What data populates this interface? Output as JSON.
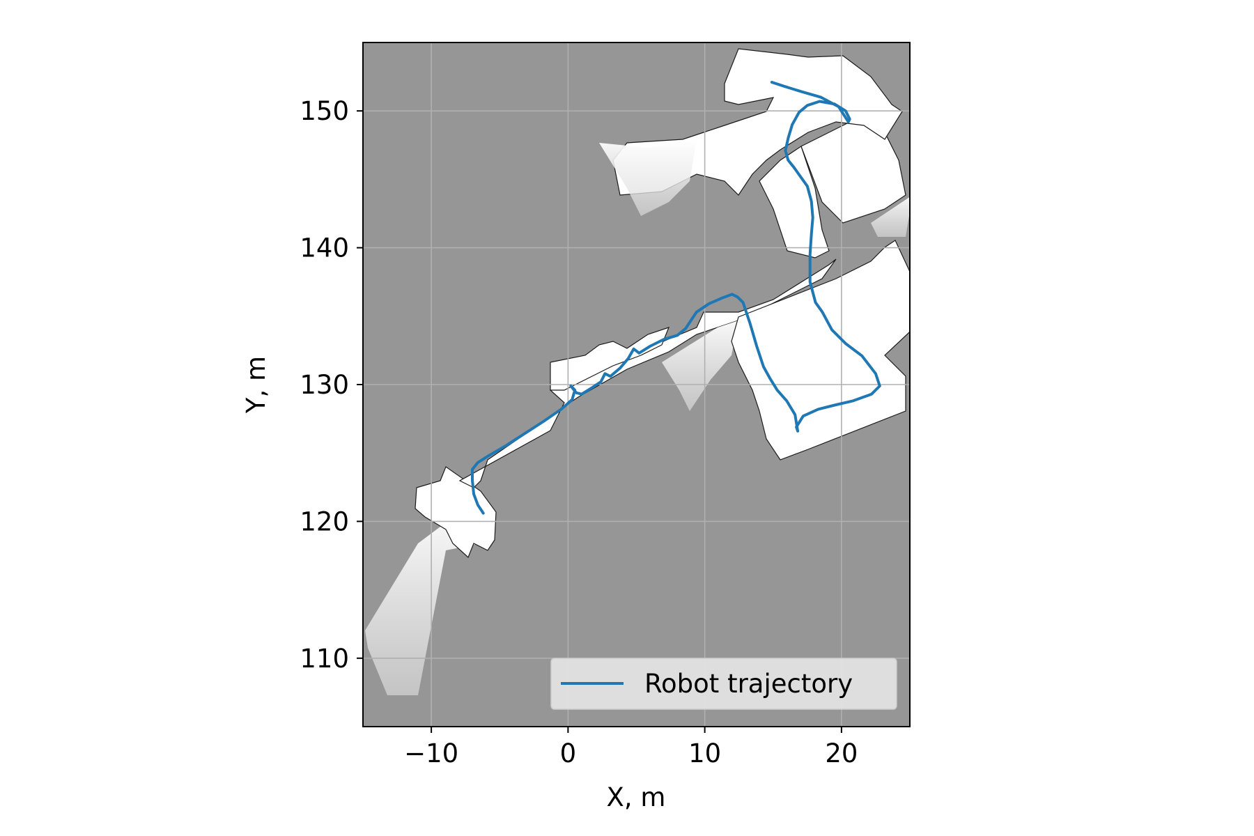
{
  "chart_data": {
    "type": "line",
    "title": "",
    "xlabel": "X, m",
    "ylabel": "Y, m",
    "xlim": [
      -15,
      25
    ],
    "ylim": [
      105,
      155
    ],
    "xticks": [
      -10,
      0,
      10,
      20
    ],
    "yticks": [
      110,
      120,
      130,
      140,
      150
    ],
    "xtick_labels": [
      "−10",
      "0",
      "10",
      "20"
    ],
    "ytick_labels": [
      "110",
      "120",
      "130",
      "140",
      "150"
    ],
    "grid": true,
    "legend_position": "lower-right",
    "background_color": "#969696",
    "map_free_color": "#ffffff",
    "series": [
      {
        "name": "Robot trajectory",
        "color": "#1f77b4",
        "x": [
          -6.2,
          -6.6,
          -6.9,
          -7.0,
          -7.0,
          -6.6,
          -5.8,
          -4.6,
          -3.2,
          -1.8,
          -0.5,
          0.3,
          0.5,
          0.2,
          0.6,
          1.0,
          1.8,
          2.4,
          2.7,
          3.1,
          3.8,
          4.4,
          4.8,
          5.2,
          6.0,
          7.0,
          8.0,
          8.6,
          9.4,
          10.3,
          11.2,
          12.0,
          12.4,
          12.8,
          13.3,
          13.8,
          14.3,
          14.8,
          15.3,
          16.0,
          16.6,
          16.8,
          16.7,
          17.2,
          18.3,
          19.5,
          20.8,
          22.2,
          22.8,
          22.5,
          21.5,
          20.3,
          19.3,
          18.6,
          18.1,
          17.7,
          17.7,
          17.8,
          17.9,
          17.8,
          17.5,
          17.0,
          16.5,
          16.1,
          15.9,
          16.1,
          16.4,
          16.9,
          17.5,
          18.4,
          19.5,
          20.3,
          20.6,
          20.5,
          19.8,
          18.5,
          17.1,
          15.8,
          14.9
        ],
        "y": [
          120.6,
          121.2,
          122.0,
          123.0,
          123.8,
          124.3,
          124.8,
          125.5,
          126.4,
          127.3,
          128.2,
          128.9,
          129.6,
          129.9,
          129.4,
          129.3,
          129.8,
          130.2,
          130.8,
          130.6,
          131.2,
          131.9,
          132.6,
          132.3,
          132.8,
          133.3,
          133.6,
          134.1,
          135.3,
          135.9,
          136.3,
          136.6,
          136.4,
          136.0,
          134.5,
          132.8,
          131.3,
          130.4,
          129.6,
          128.8,
          127.8,
          126.6,
          126.9,
          127.7,
          128.2,
          128.5,
          128.8,
          129.3,
          129.9,
          130.8,
          132.1,
          133.0,
          134.0,
          135.3,
          136.0,
          137.5,
          139.5,
          141.0,
          142.2,
          143.4,
          144.5,
          145.2,
          145.9,
          146.4,
          147.1,
          148.0,
          149.0,
          149.9,
          150.4,
          150.7,
          150.5,
          150.0,
          149.4,
          149.2,
          150.3,
          151.0,
          151.4,
          151.8,
          152.1
        ]
      }
    ],
    "legend": {
      "entries": [
        "Robot trajectory"
      ]
    }
  }
}
